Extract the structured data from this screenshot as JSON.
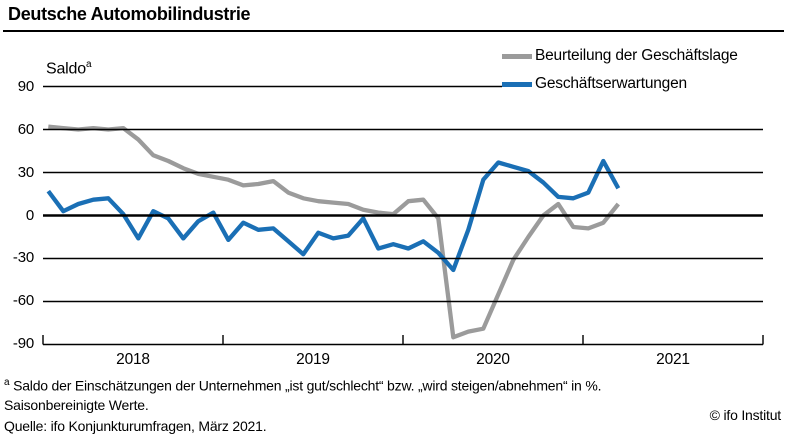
{
  "header": {
    "title": "Deutsche Automobilindustrie"
  },
  "axis": {
    "saldo_label": "Saldo",
    "saldo_sup": "a",
    "y_ticks": [
      90,
      60,
      30,
      0,
      -30,
      -60,
      -90
    ],
    "x_tick_labels": [
      "2018",
      "2019",
      "2020",
      "2021"
    ]
  },
  "legend": [
    {
      "label": "Beurteilung der Geschäftslage",
      "color": "#9b9b9b"
    },
    {
      "label": "Geschäftserwartungen",
      "color": "#1a6fb5"
    }
  ],
  "colors": {
    "grid": "#000000",
    "lage_gray": "#9b9b9b",
    "erwartungen_blue": "#1a6fb5"
  },
  "chart_data": {
    "type": "line",
    "title": "Deutsche Automobilindustrie",
    "ylabel": "Saldo",
    "x_unit": "month",
    "x_start": "2018-01",
    "x_end": "2021-03",
    "x_axis_span": [
      "2018-01",
      "2022-01"
    ],
    "ylim": [
      -90,
      90
    ],
    "y_tick_step": 30,
    "x_tick_labels": [
      "2018",
      "2019",
      "2020",
      "2021"
    ],
    "grid": true,
    "legend_position": "top-right",
    "series": [
      {
        "name": "Beurteilung der Geschäftslage",
        "color": "#9b9b9b",
        "values": [
          62,
          61,
          60,
          61,
          60,
          61,
          53,
          42,
          38,
          33,
          29,
          27,
          25,
          21,
          22,
          24,
          16,
          12,
          10,
          9,
          8,
          4,
          2,
          1,
          10,
          11,
          -2,
          -85,
          -81,
          -79,
          -55,
          -31,
          -15,
          0,
          8,
          -8,
          -9,
          -5,
          8
        ]
      },
      {
        "name": "Geschäftserwartungen",
        "color": "#1a6fb5",
        "values": [
          17,
          3,
          8,
          11,
          12,
          1,
          -16,
          3,
          -2,
          -16,
          -4,
          2,
          -17,
          -5,
          -10,
          -9,
          -18,
          -27,
          -12,
          -16,
          -14,
          -2,
          -23,
          -20,
          -23,
          -18,
          -26,
          -38,
          -10,
          25,
          37,
          34,
          31,
          23,
          13,
          12,
          16,
          38,
          19
        ]
      }
    ]
  },
  "footer": {
    "footnote_sup": "a",
    "footnote1": " Saldo der Einschätzungen der Unternehmen „ist gut/schlecht“ bzw. „wird steigen/abnehmen“ in %.",
    "footnote2": "Saisonbereinigte Werte.",
    "source": "Quelle: ifo Konjunkturumfragen, März 2021.",
    "copyright": "© ifo Institut"
  }
}
